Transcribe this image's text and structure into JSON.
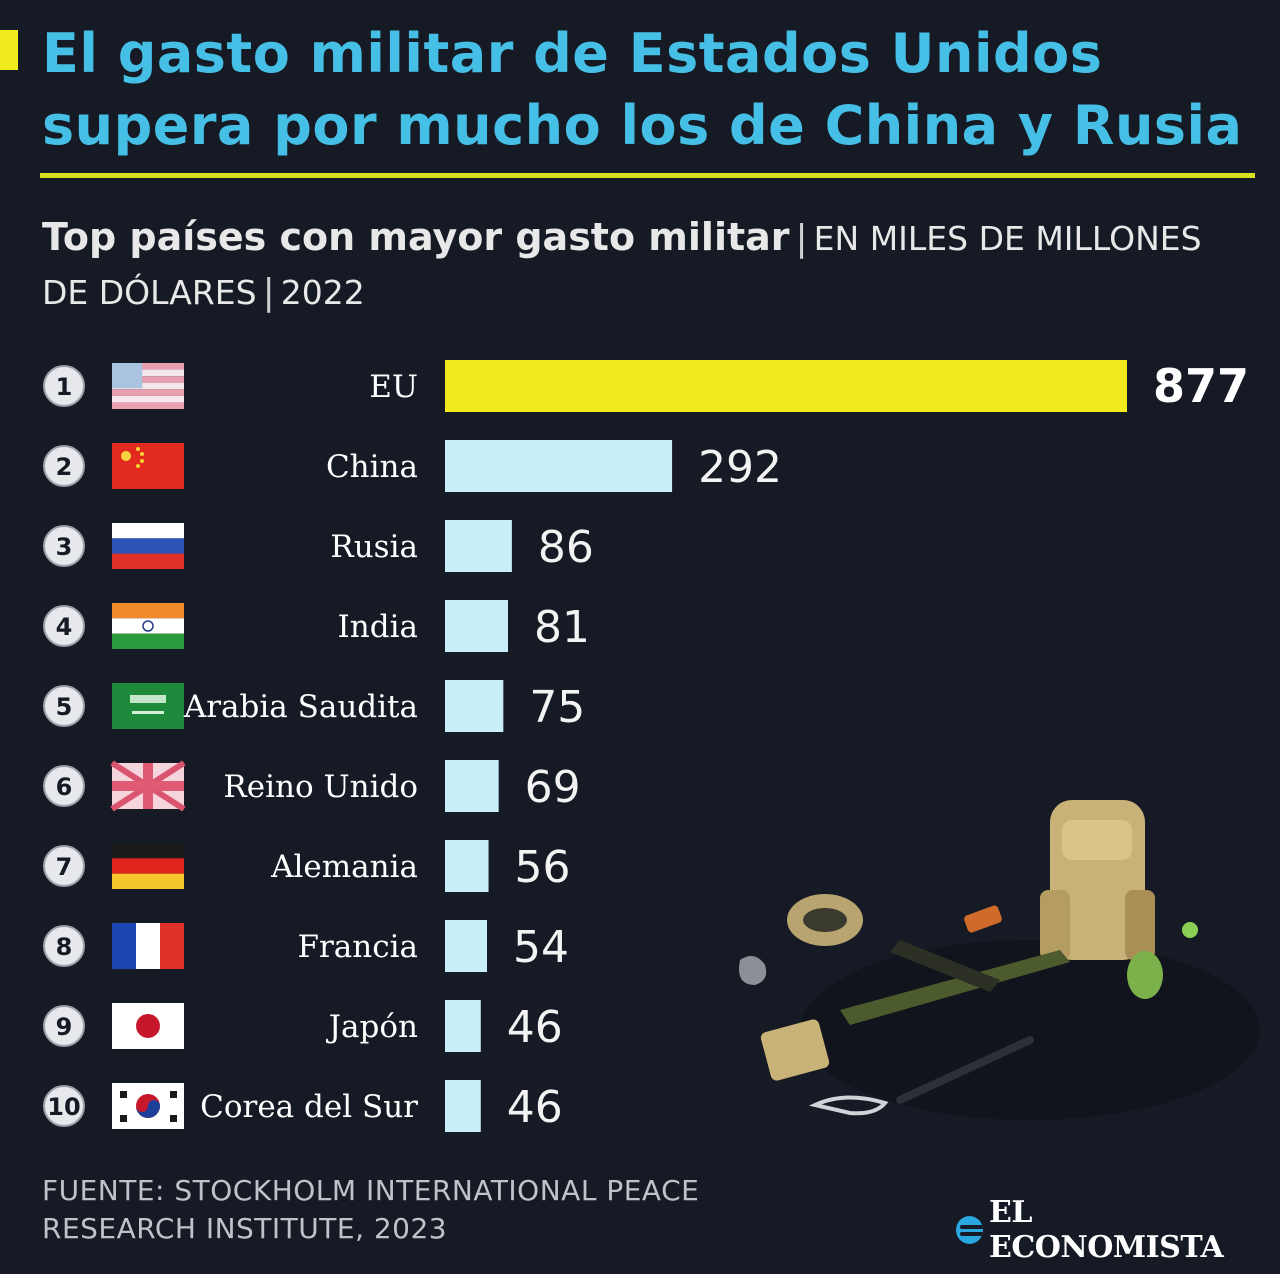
{
  "title": "El gasto militar de Estados Unidos supera por mucho los de China y Rusia",
  "subtitle_bold": "Top países con mayor gasto militar",
  "subtitle_unit": "EN MILES DE MILLONES DE DÓLARES",
  "subtitle_year": "2022",
  "source": "FUENTE: STOCKHOLM INTERNATIONAL PEACE RESEARCH INSTITUTE, 2023",
  "brand": "EL ECONOMISTA",
  "colors": {
    "title": "#46bfe6",
    "accent": "#f2ec1f",
    "highlight_bar": "#f2ec1f",
    "bar": "#c8eefa",
    "background": "#161a24"
  },
  "chart_data": {
    "type": "bar",
    "orientation": "horizontal",
    "title": "Top países con mayor gasto militar",
    "unit": "EN MILES DE MILLONES DE DÓLARES",
    "year": "2022",
    "categories": [
      "EU",
      "China",
      "Rusia",
      "India",
      "Arabia Saudita",
      "Reino Unido",
      "Alemania",
      "Francia",
      "Japón",
      "Corea del Sur"
    ],
    "ranks": [
      "1",
      "2",
      "3",
      "4",
      "5",
      "6",
      "7",
      "8",
      "9",
      "10"
    ],
    "values": [
      877,
      292,
      86,
      81,
      75,
      69,
      56,
      54,
      46,
      46
    ],
    "flags": [
      "usa-flag",
      "china-flag",
      "russia-flag",
      "india-flag",
      "saudi-arabia-flag",
      "uk-flag",
      "germany-flag",
      "france-flag",
      "japan-flag",
      "south-korea-flag"
    ],
    "highlight_index": 0,
    "legend": "none",
    "grid": false
  }
}
